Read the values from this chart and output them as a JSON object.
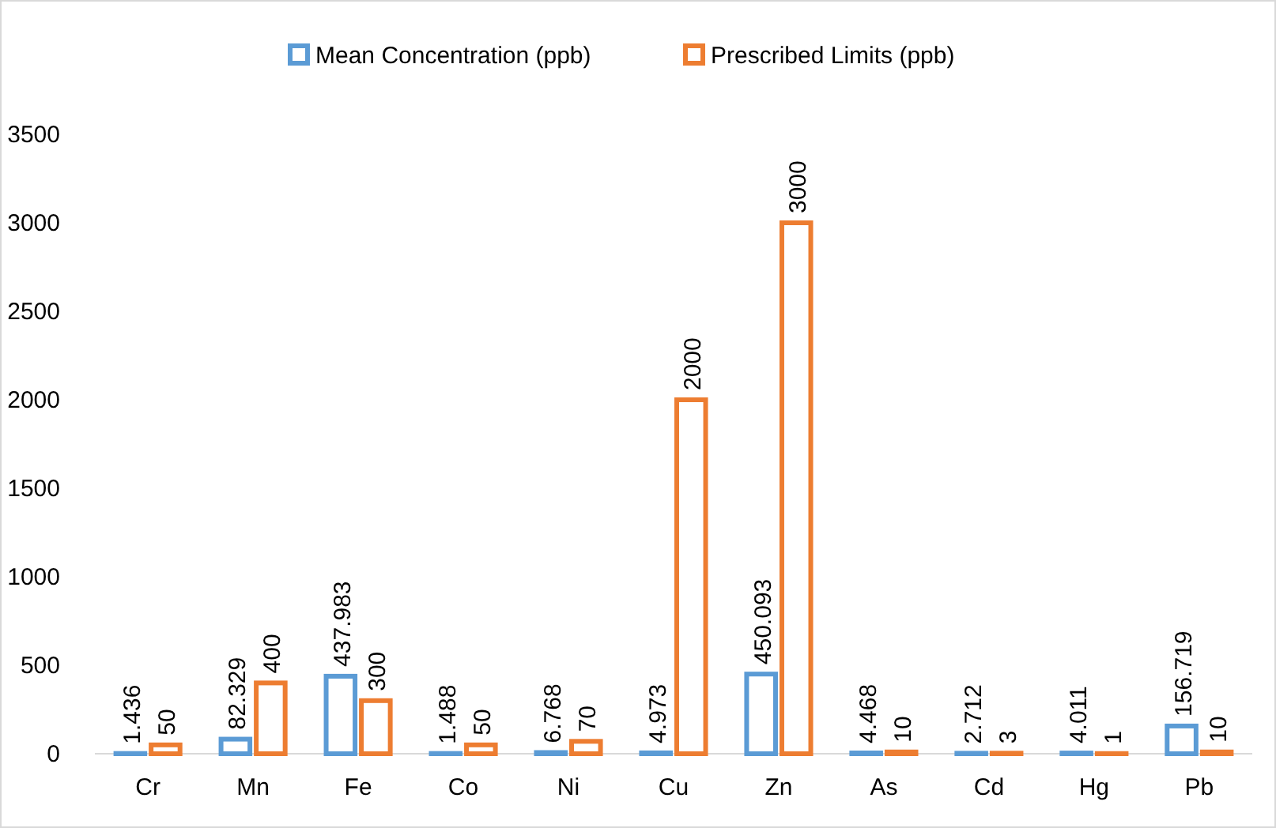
{
  "chart_data": {
    "type": "bar",
    "categories": [
      "Cr",
      "Mn",
      "Fe",
      "Co",
      "Ni",
      "Cu",
      "Zn",
      "As",
      "Cd",
      "Hg",
      "Pb"
    ],
    "series": [
      {
        "name": "Mean Concentration (ppb)",
        "color": "#5b9bd5",
        "values": [
          1.436,
          82.329,
          437.983,
          1.488,
          6.768,
          4.973,
          450.093,
          4.468,
          2.712,
          4.011,
          156.719
        ]
      },
      {
        "name": "Prescribed Limits (ppb)",
        "color": "#ed7d31",
        "values": [
          50,
          400,
          300,
          50,
          70,
          2000,
          3000,
          10,
          3,
          1,
          10
        ]
      }
    ],
    "ylim": [
      0,
      3500
    ],
    "yticks": [
      0,
      500,
      1000,
      1500,
      2000,
      2500,
      3000,
      3500
    ],
    "data_labels": true,
    "legend": "top",
    "grid": false
  }
}
